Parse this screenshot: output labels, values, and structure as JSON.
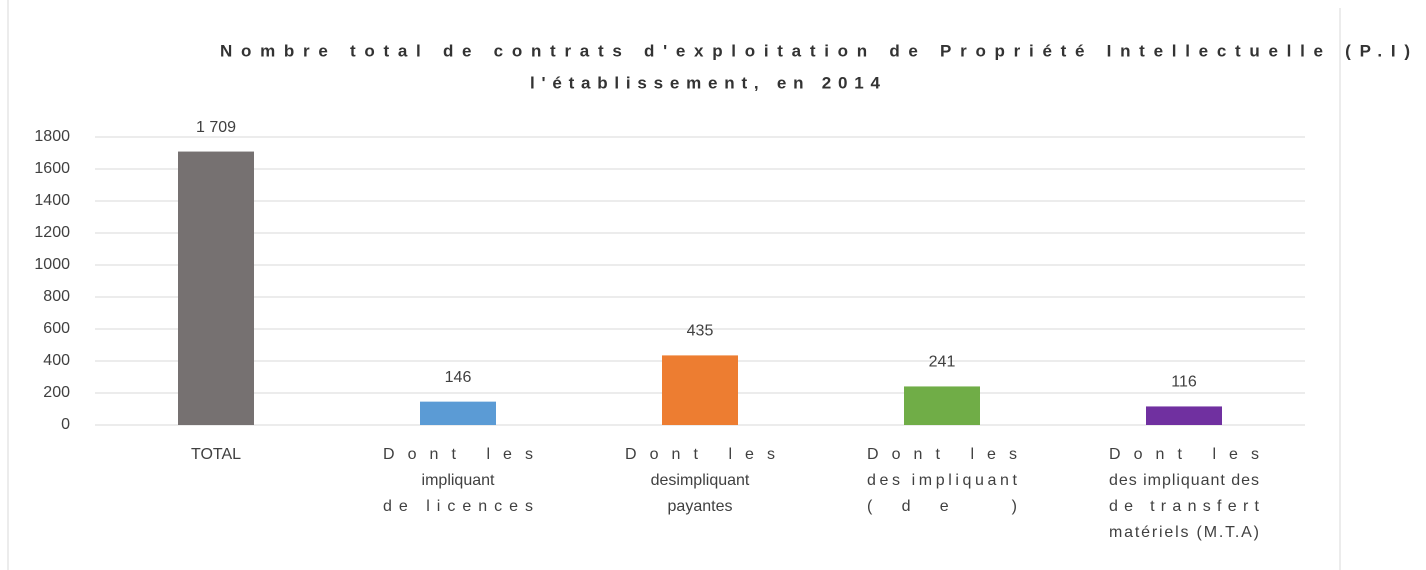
{
  "chart_data": {
    "type": "bar",
    "title": [
      "Nombre total de contrats d'exploitation de Propriété Intellectuelle (P.I)",
      "l'établissement, en 2014"
    ],
    "categories": [
      [
        "TOTAL"
      ],
      [
        "Dont les",
        "impliquant",
        "de licences"
      ],
      [
        "Dont les",
        "desimpliquant",
        "payantes"
      ],
      [
        "Dont les",
        "des impliquant",
        "(de )"
      ],
      [
        "Dont les",
        "des impliquant des",
        "de transfert",
        "matériels (M.T.A)"
      ]
    ],
    "values": [
      1709,
      146,
      435,
      241,
      116
    ],
    "value_labels": [
      "1 709",
      "146",
      "435",
      "241",
      "116"
    ],
    "colors": [
      "#767171",
      "#5b9bd5",
      "#ed7d31",
      "#70ad47",
      "#7030a0"
    ],
    "ylim": [
      0,
      1800
    ],
    "yticks": [
      0,
      200,
      400,
      600,
      800,
      1000,
      1200,
      1400,
      1600,
      1800
    ],
    "grid": true
  }
}
